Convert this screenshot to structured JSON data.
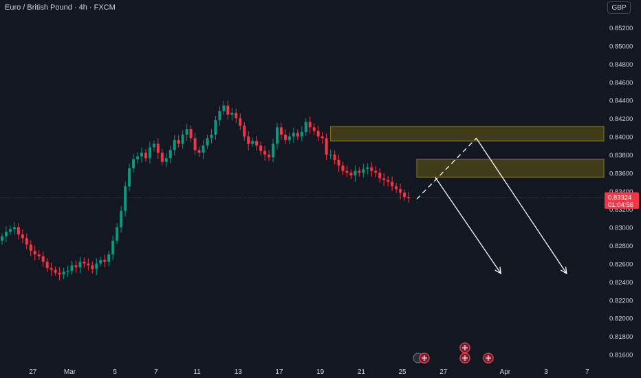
{
  "header": {
    "title": "Euro / British Pound · 4h · FXCM",
    "currency_button": "GBP"
  },
  "price_badge": {
    "price": "0.83324",
    "countdown": "01:04:56",
    "color": "#f23645"
  },
  "colors": {
    "background": "#131722",
    "up": "#089981",
    "down": "#f23645",
    "zone_fill": "rgba(148,130,10,0.35)",
    "zone_border": "#8d7d13",
    "axis_text": "#d1d4dc",
    "arrow": "#ffffff"
  },
  "chart_data": {
    "type": "candlestick",
    "symbol": "Euro / British Pound · 4h · FXCM",
    "ylim": [
      0.8153,
      0.8537
    ],
    "y_ticks": [
      "0.85200",
      "0.85000",
      "0.84800",
      "0.84600",
      "0.84400",
      "0.84200",
      "0.84000",
      "0.83800",
      "0.83600",
      "0.83400",
      "0.83200",
      "0.83000",
      "0.82800",
      "0.82600",
      "0.82400",
      "0.82200",
      "0.82000",
      "0.81800",
      "0.81600"
    ],
    "y_tick_values": [
      0.852,
      0.85,
      0.848,
      0.846,
      0.844,
      0.842,
      0.84,
      0.838,
      0.836,
      0.834,
      0.832,
      0.83,
      0.828,
      0.826,
      0.824,
      0.822,
      0.82,
      0.818,
      0.816
    ],
    "x_ticks": [
      "27",
      "Mar",
      "5",
      "7",
      "11",
      "13",
      "17",
      "19",
      "21",
      "25",
      "27",
      "Apr",
      "3",
      "7"
    ],
    "x_tick_bars": [
      7.5,
      16.5,
      27.5,
      37.5,
      47.5,
      57.5,
      67.5,
      77.5,
      87.5,
      97.5,
      107.5,
      122.5,
      132.5,
      142.5
    ],
    "closes": [
      0.829,
      0.8295,
      0.8298,
      0.83,
      0.8292,
      0.8288,
      0.8281,
      0.8274,
      0.827,
      0.8268,
      0.8262,
      0.8255,
      0.8253,
      0.825,
      0.8248,
      0.8251,
      0.8252,
      0.8258,
      0.8256,
      0.8262,
      0.826,
      0.8258,
      0.8254,
      0.826,
      0.8264,
      0.8262,
      0.827,
      0.8285,
      0.83,
      0.8318,
      0.8345,
      0.8365,
      0.8375,
      0.8378,
      0.8382,
      0.8376,
      0.8388,
      0.8392,
      0.8382,
      0.8372,
      0.8376,
      0.8385,
      0.8396,
      0.8392,
      0.8402,
      0.8408,
      0.8398,
      0.8385,
      0.8382,
      0.839,
      0.8398,
      0.8402,
      0.8418,
      0.8428,
      0.8434,
      0.8424,
      0.8426,
      0.842,
      0.8412,
      0.84,
      0.8392,
      0.8395,
      0.839,
      0.8384,
      0.838,
      0.8377,
      0.8392,
      0.841,
      0.8402,
      0.8396,
      0.84,
      0.8404,
      0.84,
      0.8405,
      0.8416,
      0.841,
      0.8406,
      0.84,
      0.8398,
      0.838,
      0.838,
      0.8374,
      0.8368,
      0.8362,
      0.836,
      0.8357,
      0.8362,
      0.836,
      0.8364,
      0.8366,
      0.8362,
      0.836,
      0.8354,
      0.8352,
      0.835,
      0.8345,
      0.8342,
      0.8338,
      0.8333,
      0.8332
    ],
    "first_open": 0.8285,
    "zones": [
      {
        "from_bar": 80,
        "to": "right",
        "low": 0.8395,
        "high": 0.8411
      },
      {
        "from_bar": 101,
        "to": "right",
        "low": 0.8355,
        "high": 0.8375
      }
    ],
    "projection": {
      "dashed": [
        [
          101.0,
          0.8331
        ],
        [
          115.5,
          0.8398
        ]
      ],
      "arrows": [
        {
          "from": [
            105.5,
            0.8355
          ],
          "to": [
            121.5,
            0.8249
          ]
        },
        {
          "from": [
            115.5,
            0.8398
          ],
          "to": [
            137.5,
            0.8249
          ]
        }
      ]
    },
    "last_price": 0.83324
  }
}
